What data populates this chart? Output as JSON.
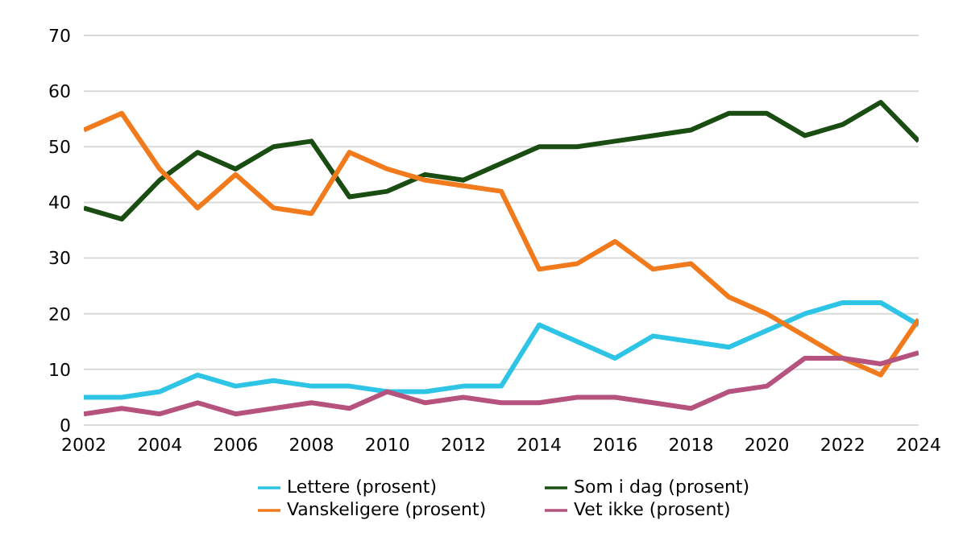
{
  "chart_data": {
    "type": "line",
    "x": [
      2002,
      2003,
      2004,
      2005,
      2006,
      2007,
      2008,
      2009,
      2010,
      2011,
      2012,
      2013,
      2014,
      2015,
      2016,
      2017,
      2018,
      2019,
      2020,
      2021,
      2022,
      2023,
      2024
    ],
    "series": [
      {
        "name": "Lettere (prosent)",
        "color": "#2ec4e6",
        "values": [
          5,
          5,
          6,
          9,
          7,
          8,
          7,
          7,
          6,
          6,
          7,
          7,
          18,
          15,
          12,
          16,
          15,
          14,
          17,
          20,
          22,
          22,
          18
        ]
      },
      {
        "name": "Som i dag (prosent)",
        "color": "#1a4d12",
        "values": [
          39,
          37,
          44,
          49,
          46,
          50,
          51,
          41,
          42,
          45,
          44,
          47,
          50,
          50,
          51,
          52,
          53,
          56,
          56,
          52,
          54,
          58,
          51
        ]
      },
      {
        "name": "Vanskeligere (prosent)",
        "color": "#f07a1c",
        "values": [
          53,
          56,
          46,
          39,
          45,
          39,
          38,
          49,
          46,
          44,
          43,
          42,
          28,
          29,
          33,
          28,
          29,
          23,
          20,
          16,
          12,
          9,
          19
        ]
      },
      {
        "name": "Vet ikke (prosent)",
        "color": "#b5527e",
        "values": [
          2,
          3,
          2,
          4,
          2,
          3,
          4,
          3,
          6,
          4,
          5,
          4,
          4,
          5,
          5,
          4,
          3,
          6,
          7,
          12,
          12,
          11,
          13
        ]
      }
    ],
    "xlim": [
      2002,
      2024
    ],
    "xticks": [
      2002,
      2004,
      2006,
      2008,
      2010,
      2012,
      2014,
      2016,
      2018,
      2020,
      2022,
      2024
    ],
    "ylim": [
      0,
      70
    ],
    "yticks": [
      0,
      10,
      20,
      30,
      40,
      50,
      60,
      70
    ],
    "grid": "y",
    "legend": "bottom",
    "marker": "none",
    "line_style": "solid"
  }
}
